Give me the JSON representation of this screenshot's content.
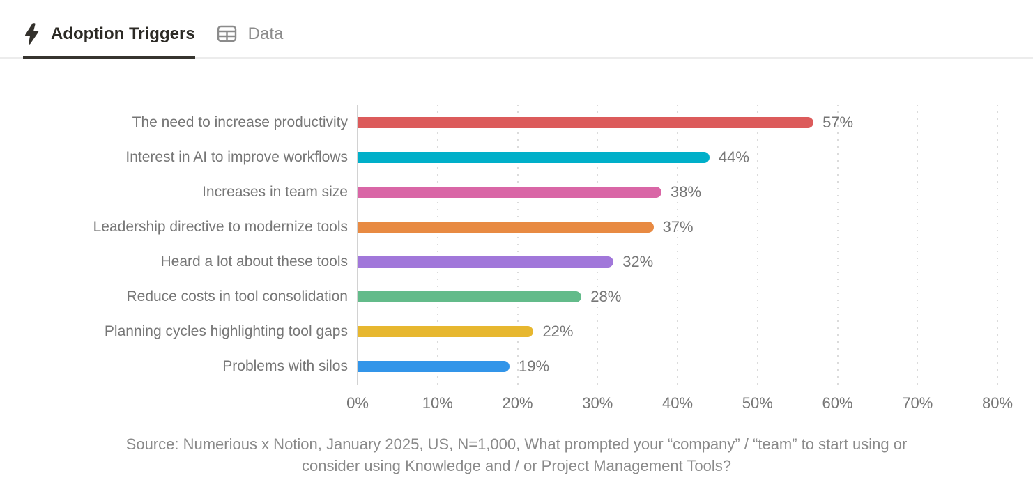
{
  "tabs": [
    {
      "label": "Adoption Triggers",
      "icon": "lightning-bolt-icon",
      "active": true
    },
    {
      "label": "Data",
      "icon": "table-icon",
      "active": false
    }
  ],
  "chart_data": {
    "type": "bar",
    "orientation": "horizontal",
    "title": "Adoption Triggers",
    "categories": [
      "The need to increase productivity",
      "Interest in AI to improve workflows",
      "Increases in team size",
      "Leadership directive to modernize tools",
      "Heard a lot about these tools",
      "Reduce costs in tool consolidation",
      "Planning cycles highlighting tool gaps",
      "Problems with silos"
    ],
    "values": [
      57,
      44,
      38,
      37,
      32,
      28,
      22,
      19
    ],
    "value_suffix": "%",
    "bar_colors": [
      "#dc5b5b",
      "#00afc9",
      "#d966a6",
      "#e88a42",
      "#a177da",
      "#63bb8a",
      "#e7b72f",
      "#3295e9"
    ],
    "xlim": [
      0,
      80
    ],
    "x_ticks": [
      "0%",
      "10%",
      "20%",
      "30%",
      "40%",
      "50%",
      "60%",
      "70%",
      "80%"
    ],
    "grid": "dotted-vertical",
    "legend": "none",
    "label_color": "#767676"
  },
  "source": {
    "line1": "Source: Numerious x Notion, January 2025, US, N=1,000, What prompted your “company” / “team” to start using or",
    "line2": "consider using Knowledge and / or Project Management Tools?"
  }
}
